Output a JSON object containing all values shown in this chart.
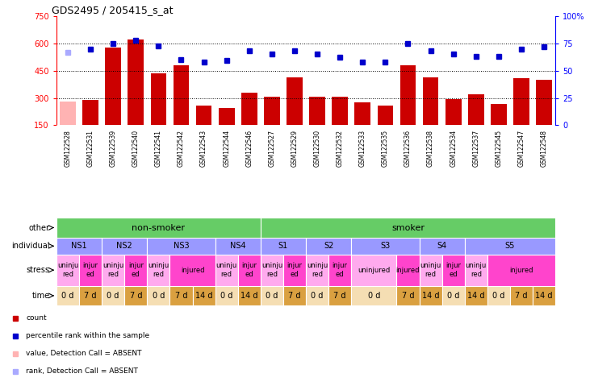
{
  "title": "GDS2495 / 205415_s_at",
  "samples": [
    "GSM122528",
    "GSM122531",
    "GSM122539",
    "GSM122540",
    "GSM122541",
    "GSM122542",
    "GSM122543",
    "GSM122544",
    "GSM122546",
    "GSM122527",
    "GSM122529",
    "GSM122530",
    "GSM122532",
    "GSM122533",
    "GSM122535",
    "GSM122536",
    "GSM122538",
    "GSM122534",
    "GSM122537",
    "GSM122545",
    "GSM122547",
    "GSM122548"
  ],
  "bar_values": [
    280,
    290,
    575,
    620,
    435,
    480,
    260,
    245,
    330,
    305,
    415,
    305,
    305,
    275,
    260,
    480,
    415,
    295,
    320,
    265,
    410,
    400
  ],
  "bar_absent": [
    true,
    false,
    false,
    false,
    false,
    false,
    false,
    false,
    false,
    false,
    false,
    false,
    false,
    false,
    false,
    false,
    false,
    false,
    false,
    false,
    false,
    false
  ],
  "dot_values": [
    67,
    70,
    75,
    78,
    73,
    60,
    58,
    59,
    68,
    65,
    68,
    65,
    62,
    58,
    58,
    75,
    68,
    65,
    63,
    63,
    70,
    72
  ],
  "dot_absent": [
    true,
    false,
    false,
    false,
    false,
    false,
    false,
    false,
    false,
    false,
    false,
    false,
    false,
    false,
    false,
    false,
    false,
    false,
    false,
    false,
    false,
    false
  ],
  "ylim_left": [
    150,
    750
  ],
  "ylim_right": [
    0,
    100
  ],
  "yticks_left": [
    150,
    300,
    450,
    600,
    750
  ],
  "yticks_right": [
    0,
    25,
    50,
    75,
    100
  ],
  "ytick_labels_right": [
    "0",
    "25",
    "50",
    "75",
    "100%"
  ],
  "bar_color": "#cc0000",
  "bar_absent_color": "#ffb3b3",
  "dot_color": "#0000cc",
  "dot_absent_color": "#aaaaff",
  "grid_color": "#000000",
  "bg_color": "#ffffff",
  "xaxis_bg": "#d3d3d3",
  "other_row": {
    "label": "other",
    "groups": [
      {
        "text": "non-smoker",
        "start": 0,
        "end": 9,
        "color": "#66cc66"
      },
      {
        "text": "smoker",
        "start": 9,
        "end": 22,
        "color": "#66cc66"
      }
    ]
  },
  "individual_row": {
    "label": "individual",
    "groups": [
      {
        "text": "NS1",
        "start": 0,
        "end": 2,
        "color": "#9999ff"
      },
      {
        "text": "NS2",
        "start": 2,
        "end": 4,
        "color": "#9999ff"
      },
      {
        "text": "NS3",
        "start": 4,
        "end": 7,
        "color": "#9999ff"
      },
      {
        "text": "NS4",
        "start": 7,
        "end": 9,
        "color": "#9999ff"
      },
      {
        "text": "S1",
        "start": 9,
        "end": 11,
        "color": "#9999ff"
      },
      {
        "text": "S2",
        "start": 11,
        "end": 13,
        "color": "#9999ff"
      },
      {
        "text": "S3",
        "start": 13,
        "end": 16,
        "color": "#9999ff"
      },
      {
        "text": "S4",
        "start": 16,
        "end": 18,
        "color": "#9999ff"
      },
      {
        "text": "S5",
        "start": 18,
        "end": 22,
        "color": "#9999ff"
      }
    ]
  },
  "stress_row": {
    "label": "stress",
    "cells": [
      {
        "text": "uninju\nred",
        "start": 0,
        "end": 1,
        "color": "#ffaaee"
      },
      {
        "text": "injur\ned",
        "start": 1,
        "end": 2,
        "color": "#ff44cc"
      },
      {
        "text": "uninju\nred",
        "start": 2,
        "end": 3,
        "color": "#ffaaee"
      },
      {
        "text": "injur\ned",
        "start": 3,
        "end": 4,
        "color": "#ff44cc"
      },
      {
        "text": "uninju\nred",
        "start": 4,
        "end": 5,
        "color": "#ffaaee"
      },
      {
        "text": "injured",
        "start": 5,
        "end": 7,
        "color": "#ff44cc"
      },
      {
        "text": "uninju\nred",
        "start": 7,
        "end": 8,
        "color": "#ffaaee"
      },
      {
        "text": "injur\ned",
        "start": 8,
        "end": 9,
        "color": "#ff44cc"
      },
      {
        "text": "uninju\nred",
        "start": 9,
        "end": 10,
        "color": "#ffaaee"
      },
      {
        "text": "injur\ned",
        "start": 10,
        "end": 11,
        "color": "#ff44cc"
      },
      {
        "text": "uninju\nred",
        "start": 11,
        "end": 12,
        "color": "#ffaaee"
      },
      {
        "text": "injur\ned",
        "start": 12,
        "end": 13,
        "color": "#ff44cc"
      },
      {
        "text": "uninjured",
        "start": 13,
        "end": 15,
        "color": "#ffaaee"
      },
      {
        "text": "injured",
        "start": 15,
        "end": 16,
        "color": "#ff44cc"
      },
      {
        "text": "uninju\nred",
        "start": 16,
        "end": 17,
        "color": "#ffaaee"
      },
      {
        "text": "injur\ned",
        "start": 17,
        "end": 18,
        "color": "#ff44cc"
      },
      {
        "text": "uninju\nred",
        "start": 18,
        "end": 19,
        "color": "#ffaaee"
      },
      {
        "text": "injured",
        "start": 19,
        "end": 22,
        "color": "#ff44cc"
      }
    ]
  },
  "time_row": {
    "label": "time",
    "cells": [
      {
        "text": "0 d",
        "start": 0,
        "end": 1,
        "color": "#f5deb3"
      },
      {
        "text": "7 d",
        "start": 1,
        "end": 2,
        "color": "#daa040"
      },
      {
        "text": "0 d",
        "start": 2,
        "end": 3,
        "color": "#f5deb3"
      },
      {
        "text": "7 d",
        "start": 3,
        "end": 4,
        "color": "#daa040"
      },
      {
        "text": "0 d",
        "start": 4,
        "end": 5,
        "color": "#f5deb3"
      },
      {
        "text": "7 d",
        "start": 5,
        "end": 6,
        "color": "#daa040"
      },
      {
        "text": "14 d",
        "start": 6,
        "end": 7,
        "color": "#daa040"
      },
      {
        "text": "0 d",
        "start": 7,
        "end": 8,
        "color": "#f5deb3"
      },
      {
        "text": "14 d",
        "start": 8,
        "end": 9,
        "color": "#daa040"
      },
      {
        "text": "0 d",
        "start": 9,
        "end": 10,
        "color": "#f5deb3"
      },
      {
        "text": "7 d",
        "start": 10,
        "end": 11,
        "color": "#daa040"
      },
      {
        "text": "0 d",
        "start": 11,
        "end": 12,
        "color": "#f5deb3"
      },
      {
        "text": "7 d",
        "start": 12,
        "end": 13,
        "color": "#daa040"
      },
      {
        "text": "0 d",
        "start": 13,
        "end": 15,
        "color": "#f5deb3"
      },
      {
        "text": "7 d",
        "start": 15,
        "end": 16,
        "color": "#daa040"
      },
      {
        "text": "14 d",
        "start": 16,
        "end": 17,
        "color": "#daa040"
      },
      {
        "text": "0 d",
        "start": 17,
        "end": 18,
        "color": "#f5deb3"
      },
      {
        "text": "14 d",
        "start": 18,
        "end": 19,
        "color": "#daa040"
      },
      {
        "text": "0 d",
        "start": 19,
        "end": 20,
        "color": "#f5deb3"
      },
      {
        "text": "7 d",
        "start": 20,
        "end": 21,
        "color": "#daa040"
      },
      {
        "text": "14 d",
        "start": 21,
        "end": 22,
        "color": "#daa040"
      }
    ]
  },
  "legend_items": [
    {
      "label": "count",
      "color": "#cc0000"
    },
    {
      "label": "percentile rank within the sample",
      "color": "#0000cc"
    },
    {
      "label": "value, Detection Call = ABSENT",
      "color": "#ffb3b3"
    },
    {
      "label": "rank, Detection Call = ABSENT",
      "color": "#aaaaff"
    }
  ],
  "nsmoker_divider": 9
}
